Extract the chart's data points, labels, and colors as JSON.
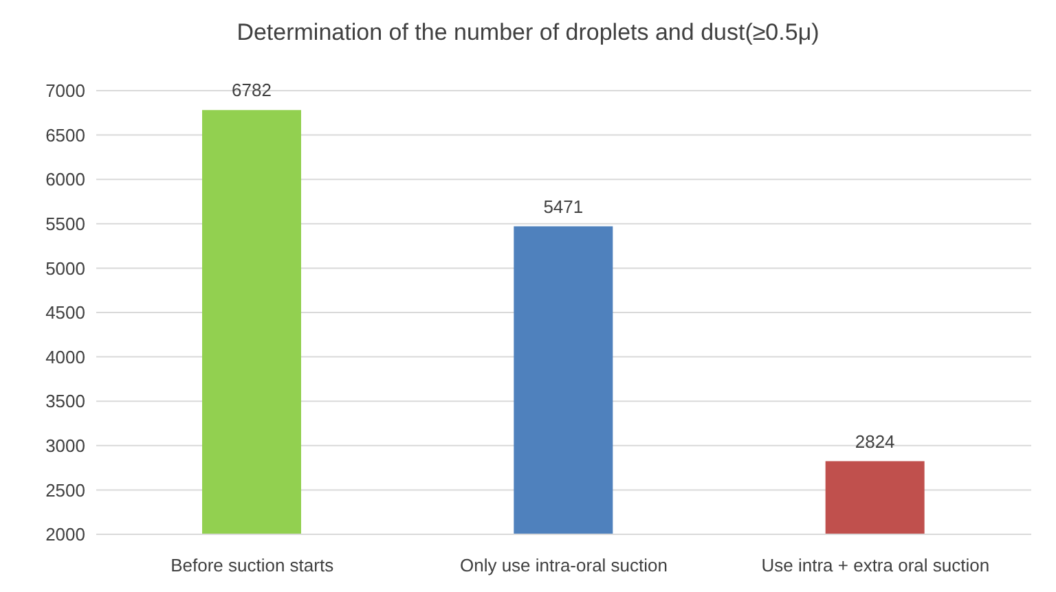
{
  "chart_data": {
    "type": "bar",
    "title": "Determination of the number of droplets and dust(≥0.5μ)",
    "categories": [
      "Before suction starts",
      "Only use intra-oral suction",
      "Use intra + extra oral suction"
    ],
    "values": [
      6782,
      5471,
      2824
    ],
    "colors": [
      "#92d050",
      "#4f81bd",
      "#c0504d"
    ],
    "ylim": [
      2000,
      7000
    ],
    "yticks": [
      2000,
      2500,
      3000,
      3500,
      4000,
      4500,
      5000,
      5500,
      6000,
      6500,
      7000
    ],
    "grid": "y",
    "data_labels": true
  }
}
